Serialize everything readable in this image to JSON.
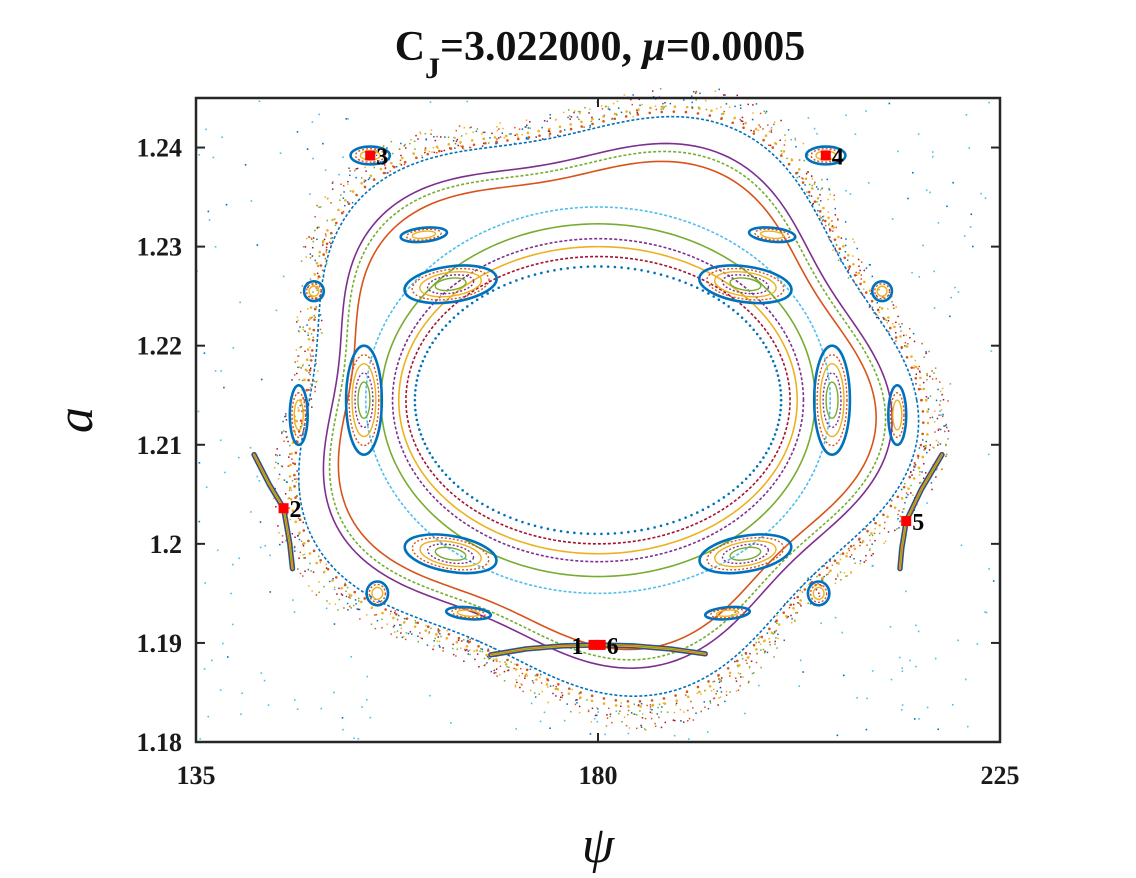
{
  "chart_data": {
    "type": "scatter",
    "title_prefix": "C",
    "title_sub": "J",
    "title_cj": "=3.022000,  ",
    "title_mu_sym": "μ",
    "title_mu": "=0.0005",
    "xlabel": "ψ",
    "ylabel": "a",
    "xlim": [
      135,
      225
    ],
    "ylim": [
      1.18,
      1.245
    ],
    "xticks": [
      135,
      180,
      225
    ],
    "xtick_labels": [
      "135",
      "180",
      "225"
    ],
    "yticks": [
      1.18,
      1.19,
      1.2,
      1.21,
      1.22,
      1.23,
      1.24
    ],
    "ytick_labels": [
      "1.18",
      "1.19",
      "1.2",
      "1.21",
      "1.22",
      "1.23",
      "1.24"
    ],
    "grid": false,
    "colors": [
      "#0072bd",
      "#d95319",
      "#edb120",
      "#7e2f8e",
      "#77ac30",
      "#4dbeee",
      "#a2142f"
    ],
    "highlight_color": "#ff0000",
    "fixed_points": [
      {
        "label": "1",
        "x": 179.5,
        "y": 1.1898,
        "label_side": "left"
      },
      {
        "label": "6",
        "x": 180.3,
        "y": 1.1898,
        "label_side": "right"
      },
      {
        "label": "2",
        "x": 144.8,
        "y": 1.2036,
        "label_side": "right"
      },
      {
        "label": "3",
        "x": 154.5,
        "y": 1.2392,
        "label_side": "right"
      },
      {
        "label": "4",
        "x": 205.5,
        "y": 1.2392,
        "label_side": "right"
      },
      {
        "label": "5",
        "x": 214.5,
        "y": 1.2023,
        "label_side": "right"
      }
    ],
    "series": [
      {
        "kind": "ring",
        "cx": 180,
        "cy": 1.2145,
        "rx": 20.5,
        "ry": 0.0135,
        "color": "#0072bd",
        "dotted": true
      },
      {
        "kind": "ring",
        "cx": 180,
        "cy": 1.2145,
        "rx": 21.5,
        "ry": 0.0145,
        "color": "#a2142f",
        "dotted": false
      },
      {
        "kind": "ring",
        "cx": 180,
        "cy": 1.2145,
        "rx": 22.3,
        "ry": 0.0155,
        "color": "#edb120",
        "dotted": false
      },
      {
        "kind": "ring",
        "cx": 180,
        "cy": 1.2145,
        "rx": 23.0,
        "ry": 0.0163,
        "color": "#7e2f8e",
        "dotted": false
      },
      {
        "kind": "ring",
        "cx": 180,
        "cy": 1.2145,
        "rx": 24.3,
        "ry": 0.0178,
        "color": "#77ac30",
        "dotted": false
      },
      {
        "kind": "ring",
        "cx": 180,
        "cy": 1.2145,
        "rx": 26.0,
        "ry": 0.0195,
        "color": "#4dbeee",
        "dotted": false
      },
      {
        "kind": "ring",
        "cx": 180,
        "cy": 1.2145,
        "rx": 29.5,
        "ry": 0.024,
        "color": "#d95319",
        "dotted": false
      },
      {
        "kind": "ring",
        "cx": 180,
        "cy": 1.2145,
        "rx": 30.5,
        "ry": 0.025,
        "color": "#77ac30",
        "dotted": false
      },
      {
        "kind": "ring",
        "cx": 180,
        "cy": 1.2145,
        "rx": 31.2,
        "ry": 0.0258,
        "color": "#7e2f8e",
        "dotted": false
      },
      {
        "kind": "ring",
        "cx": 180,
        "cy": 1.2145,
        "rx": 34.0,
        "ry": 0.0285,
        "color": "#0072bd",
        "dotted": false
      },
      {
        "kind": "ring",
        "cx": 180,
        "cy": 1.2145,
        "rx": 34.5,
        "ry": 0.029,
        "color": "#d95319",
        "dotted": true
      },
      {
        "kind": "ring",
        "cx": 180,
        "cy": 1.2145,
        "rx": 35.0,
        "ry": 0.0295,
        "color": "#edb120",
        "dotted": true
      }
    ],
    "islands": [
      {
        "cx": 163.5,
        "cy": 1.2262,
        "rx": 5.2,
        "ry": 0.0018,
        "rot": -8
      },
      {
        "cx": 196.5,
        "cy": 1.2262,
        "rx": 5.2,
        "ry": 0.0018,
        "rot": 8
      },
      {
        "cx": 153.8,
        "cy": 1.2145,
        "rx": 2.0,
        "ry": 0.0055,
        "rot": 0
      },
      {
        "cx": 206.2,
        "cy": 1.2145,
        "rx": 2.0,
        "ry": 0.0055,
        "rot": 0
      },
      {
        "cx": 163.5,
        "cy": 1.199,
        "rx": 5.2,
        "ry": 0.0018,
        "rot": 10
      },
      {
        "cx": 196.5,
        "cy": 1.199,
        "rx": 5.2,
        "ry": 0.0018,
        "rot": -10
      }
    ],
    "small_islands": [
      {
        "cx": 160.5,
        "cy": 1.2312,
        "rx": 2.6,
        "ry": 0.0007,
        "rot": -6
      },
      {
        "cx": 199.5,
        "cy": 1.2312,
        "rx": 2.6,
        "ry": 0.0007,
        "rot": 6
      },
      {
        "cx": 148.2,
        "cy": 1.2255,
        "rx": 1.1,
        "ry": 0.001,
        "rot": 0
      },
      {
        "cx": 211.8,
        "cy": 1.2255,
        "rx": 1.1,
        "ry": 0.001,
        "rot": 0
      },
      {
        "cx": 146.5,
        "cy": 1.213,
        "rx": 1.0,
        "ry": 0.003,
        "rot": 0
      },
      {
        "cx": 213.5,
        "cy": 1.213,
        "rx": 1.0,
        "ry": 0.003,
        "rot": 0
      },
      {
        "cx": 155.3,
        "cy": 1.195,
        "rx": 1.2,
        "ry": 0.0012,
        "rot": 0
      },
      {
        "cx": 204.7,
        "cy": 1.195,
        "rx": 1.2,
        "ry": 0.0012,
        "rot": 0
      },
      {
        "cx": 165.5,
        "cy": 1.193,
        "rx": 2.5,
        "ry": 0.0006,
        "rot": 5
      },
      {
        "cx": 194.5,
        "cy": 1.193,
        "rx": 2.5,
        "ry": 0.0006,
        "rot": -5
      },
      {
        "cx": 154.5,
        "cy": 1.2392,
        "rx": 2.2,
        "ry": 0.0009,
        "rot": 0
      },
      {
        "cx": 205.5,
        "cy": 1.2392,
        "rx": 2.2,
        "ry": 0.0009,
        "rot": 0
      }
    ],
    "arcs": [
      {
        "name": "bottom",
        "points": [
          [
            168,
            1.1888
          ],
          [
            172,
            1.1894
          ],
          [
            176,
            1.1897
          ],
          [
            180,
            1.1898
          ],
          [
            184,
            1.1897
          ],
          [
            188,
            1.1894
          ],
          [
            192,
            1.1889
          ]
        ],
        "width": 0.0007
      },
      {
        "name": "left",
        "points": [
          [
            141.5,
            1.209
          ],
          [
            143.2,
            1.206
          ],
          [
            144.8,
            1.2036
          ],
          [
            145.5,
            1.2
          ],
          [
            145.8,
            1.1975
          ]
        ],
        "width": 1.0
      },
      {
        "name": "right",
        "points": [
          [
            218.5,
            1.209
          ],
          [
            216.2,
            1.2055
          ],
          [
            214.5,
            1.2023
          ],
          [
            214.0,
            1.1995
          ],
          [
            213.8,
            1.1975
          ]
        ],
        "width": 1.0
      }
    ]
  }
}
